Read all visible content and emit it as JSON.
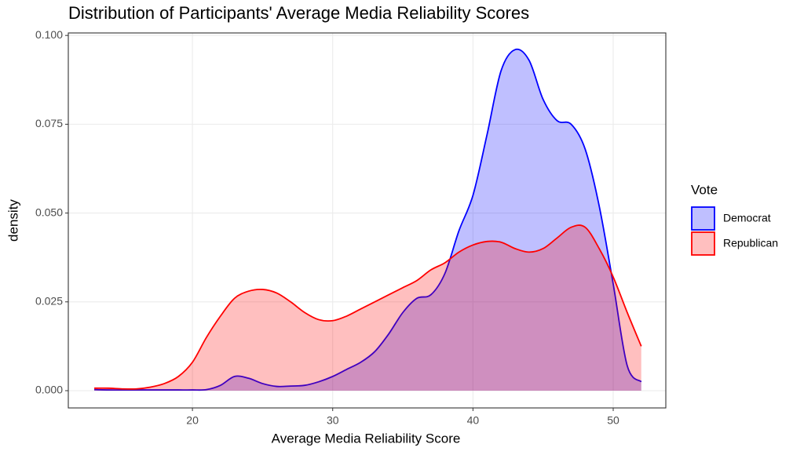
{
  "chart_data": {
    "type": "density",
    "title": "Distribution of Participants' Average Media Reliability Scores",
    "x_label": "Average Media Reliability Score",
    "y_label": "density",
    "legend_title": "Vote",
    "legend_position": "right",
    "grid": true,
    "x": [
      13,
      14,
      15,
      16,
      17,
      18,
      19,
      20,
      21,
      22,
      23,
      24,
      25,
      26,
      27,
      28,
      29,
      30,
      31,
      32,
      33,
      34,
      35,
      36,
      37,
      38,
      39,
      40,
      41,
      42,
      43,
      44,
      45,
      46,
      47,
      48,
      49,
      50,
      51,
      52
    ],
    "series": [
      {
        "name": "Democrat",
        "color": "#0000ff",
        "values": [
          0.0003,
          0.0002,
          0.0002,
          0.0002,
          0.0002,
          0.0002,
          0.0002,
          0.0002,
          0.0003,
          0.0015,
          0.004,
          0.0035,
          0.002,
          0.0012,
          0.0013,
          0.0015,
          0.0025,
          0.004,
          0.006,
          0.008,
          0.011,
          0.016,
          0.022,
          0.026,
          0.027,
          0.033,
          0.045,
          0.055,
          0.072,
          0.09,
          0.096,
          0.093,
          0.082,
          0.076,
          0.075,
          0.068,
          0.052,
          0.03,
          0.007,
          0.0025
        ]
      },
      {
        "name": "Republican",
        "color": "#ff0000",
        "values": [
          0.0007,
          0.0007,
          0.0005,
          0.0005,
          0.001,
          0.002,
          0.004,
          0.008,
          0.015,
          0.021,
          0.026,
          0.028,
          0.0285,
          0.0275,
          0.025,
          0.022,
          0.02,
          0.0197,
          0.021,
          0.023,
          0.025,
          0.027,
          0.029,
          0.031,
          0.034,
          0.036,
          0.039,
          0.041,
          0.042,
          0.0418,
          0.04,
          0.039,
          0.04,
          0.043,
          0.046,
          0.046,
          0.04,
          0.032,
          0.022,
          0.0125
        ]
      }
    ],
    "xlim": [
      11.15,
      53.75
    ],
    "ylim": [
      -0.00486,
      0.1007
    ],
    "xticks": [
      20,
      30,
      40,
      50
    ],
    "yticks": [
      {
        "value": 0,
        "label": "0.000"
      },
      {
        "value": 0.025,
        "label": "0.025"
      },
      {
        "value": 0.05,
        "label": "0.050"
      },
      {
        "value": 0.075,
        "label": "0.075"
      },
      {
        "value": 0.1,
        "label": "0.100"
      }
    ]
  }
}
